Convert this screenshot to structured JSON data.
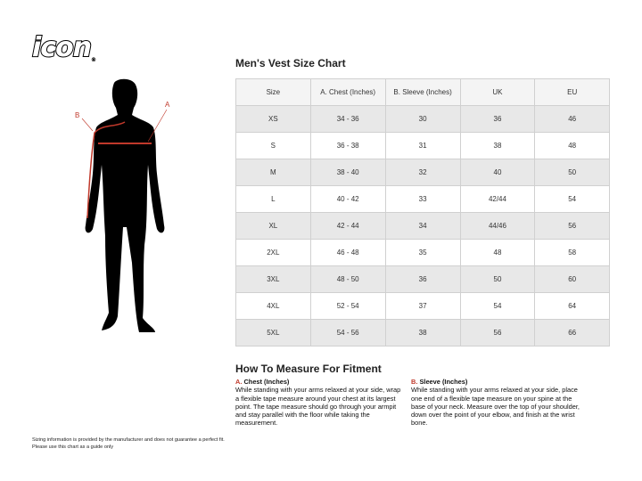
{
  "brand": {
    "logo_text": "icon"
  },
  "figure": {
    "label_a": "A",
    "label_b": "B",
    "accent_color": "#c0392b"
  },
  "chart": {
    "title": "Men's Vest Size Chart",
    "headers": [
      "Size",
      "A. Chest (Inches)",
      "B. Sleeve (Inches)",
      "UK",
      "EU"
    ],
    "rows": [
      [
        "XS",
        "34 - 36",
        "30",
        "36",
        "46"
      ],
      [
        "S",
        "36 - 38",
        "31",
        "38",
        "48"
      ],
      [
        "M",
        "38 - 40",
        "32",
        "40",
        "50"
      ],
      [
        "L",
        "40 - 42",
        "33",
        "42/44",
        "54"
      ],
      [
        "XL",
        "42 - 44",
        "34",
        "44/46",
        "56"
      ],
      [
        "2XL",
        "46 - 48",
        "35",
        "48",
        "58"
      ],
      [
        "3XL",
        "48 - 50",
        "36",
        "50",
        "60"
      ],
      [
        "4XL",
        "52 - 54",
        "37",
        "54",
        "64"
      ],
      [
        "5XL",
        "54 - 56",
        "38",
        "56",
        "66"
      ]
    ]
  },
  "howto": {
    "title": "How To Measure For Fitment",
    "chest": {
      "letter": "A.",
      "heading": "Chest (Inches)",
      "text": "While standing with your arms relaxed at your side, wrap a flexible tape measure around your chest at its largest point. The tape measure should go through your armpit and stay parallel with the floor while taking the measurement."
    },
    "sleeve": {
      "letter": "B.",
      "heading": "Sleeve (Inches)",
      "text": "While standing with your arms relaxed at your side, place one end of a flexible tape measure on your spine at the base of your neck. Measure over the top of your shoulder, down over the point of your elbow, and finish at the wrist bone."
    }
  },
  "footer": {
    "line1": "Sizing information is provided by the manufacturer and does not guarantee a perfect fit.",
    "line2": "Please use this chart as a guide only"
  }
}
